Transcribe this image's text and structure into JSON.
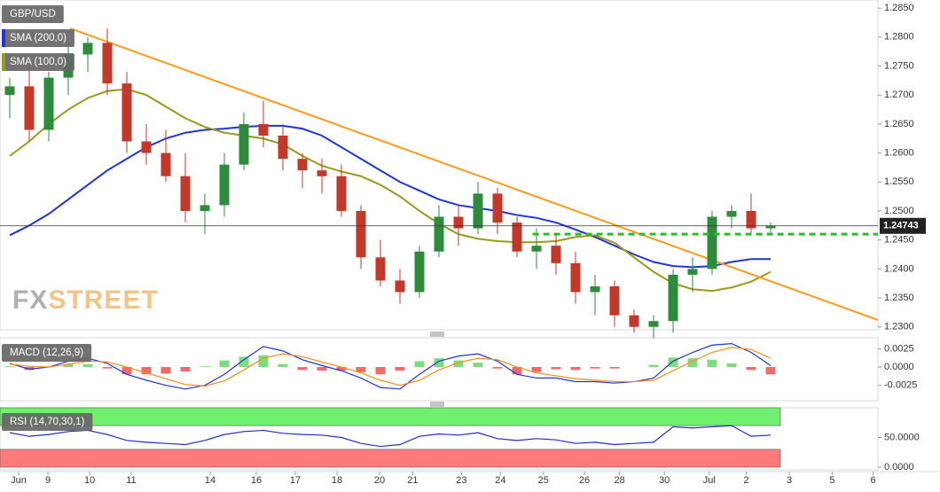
{
  "chart_data": [
    {
      "type": "candlestick",
      "name": "GBP/USD",
      "up_color": "#2e8b3d",
      "down_color": "#c0392b",
      "xlim": [
        -0.5,
        44.5
      ],
      "ylim": [
        1.2295,
        1.2864
      ],
      "yticks": [
        {
          "value": 1.285,
          "label": "1.2850"
        },
        {
          "value": 1.28,
          "label": "1.2800"
        },
        {
          "value": 1.275,
          "label": "1.2750"
        },
        {
          "value": 1.27,
          "label": "1.2700"
        },
        {
          "value": 1.265,
          "label": "1.2650"
        },
        {
          "value": 1.26,
          "label": "1.2600"
        },
        {
          "value": 1.255,
          "label": "1.2550"
        },
        {
          "value": 1.25,
          "label": "1.2500"
        },
        {
          "value": 1.245,
          "label": "1.2450"
        },
        {
          "value": 1.24,
          "label": "1.2400"
        },
        {
          "value": 1.235,
          "label": "1.2350"
        },
        {
          "value": 1.23,
          "label": "1.2300"
        }
      ],
      "ohlc": [
        [
          1.27,
          1.273,
          1.266,
          1.2715
        ],
        [
          1.2715,
          1.276,
          1.262,
          1.264
        ],
        [
          1.264,
          1.274,
          1.262,
          1.273
        ],
        [
          1.273,
          1.279,
          1.27,
          1.277
        ],
        [
          1.277,
          1.28,
          1.274,
          1.279
        ],
        [
          1.279,
          1.2815,
          1.27,
          1.272
        ],
        [
          1.272,
          1.274,
          1.26,
          1.262
        ],
        [
          1.262,
          1.265,
          1.258,
          1.26
        ],
        [
          1.26,
          1.264,
          1.255,
          1.256
        ],
        [
          1.256,
          1.26,
          1.248,
          1.25
        ],
        [
          1.25,
          1.253,
          1.246,
          1.251
        ],
        [
          1.251,
          1.26,
          1.249,
          1.258
        ],
        [
          1.258,
          1.267,
          1.257,
          1.265
        ],
        [
          1.265,
          1.269,
          1.261,
          1.263
        ],
        [
          1.263,
          1.265,
          1.257,
          1.259
        ],
        [
          1.259,
          1.26,
          1.254,
          1.257
        ],
        [
          1.257,
          1.259,
          1.253,
          1.256
        ],
        [
          1.256,
          1.258,
          1.249,
          1.25
        ],
        [
          1.25,
          1.251,
          1.24,
          1.242
        ],
        [
          1.242,
          1.245,
          1.237,
          1.238
        ],
        [
          1.238,
          1.24,
          1.234,
          1.236
        ],
        [
          1.236,
          1.244,
          1.235,
          1.243
        ],
        [
          1.243,
          1.251,
          1.242,
          1.249
        ],
        [
          1.249,
          1.251,
          1.244,
          1.247
        ],
        [
          1.247,
          1.255,
          1.246,
          1.253
        ],
        [
          1.253,
          1.254,
          1.246,
          1.248
        ],
        [
          1.248,
          1.249,
          1.242,
          1.243
        ],
        [
          1.243,
          1.247,
          1.24,
          1.244
        ],
        [
          1.244,
          1.246,
          1.239,
          1.241
        ],
        [
          1.241,
          1.243,
          1.234,
          1.236
        ],
        [
          1.236,
          1.239,
          1.232,
          1.237
        ],
        [
          1.237,
          1.238,
          1.23,
          1.232
        ],
        [
          1.232,
          1.233,
          1.229,
          1.23
        ],
        [
          1.23,
          1.232,
          1.228,
          1.231
        ],
        [
          1.231,
          1.24,
          1.229,
          1.239
        ],
        [
          1.239,
          1.242,
          1.236,
          1.24
        ],
        [
          1.24,
          1.25,
          1.239,
          1.249
        ],
        [
          1.249,
          1.251,
          1.247,
          1.25
        ],
        [
          1.25,
          1.253,
          1.246,
          1.247
        ],
        [
          1.247,
          1.248,
          1.246,
          1.24743
        ]
      ],
      "series": [
        {
          "name": "SMA (200,0)",
          "color": "#1f35d6",
          "values": [
            1.2458,
            1.2475,
            1.2495,
            1.252,
            1.2545,
            1.257,
            1.259,
            1.261,
            1.2625,
            1.2635,
            1.264,
            1.2642,
            1.2645,
            1.2647,
            1.2647,
            1.2642,
            1.263,
            1.261,
            1.259,
            1.257,
            1.255,
            1.2535,
            1.252,
            1.251,
            1.2505,
            1.25,
            1.2493,
            1.2488,
            1.248,
            1.2468,
            1.2455,
            1.244,
            1.2425,
            1.2412,
            1.2405,
            1.2403,
            1.2405,
            1.2412,
            1.2417,
            1.2417
          ]
        },
        {
          "name": "SMA (100,0)",
          "color": "#9a9a1a",
          "values": [
            1.2595,
            1.262,
            1.265,
            1.2675,
            1.2695,
            1.2707,
            1.271,
            1.27,
            1.268,
            1.266,
            1.2645,
            1.2635,
            1.263,
            1.2625,
            1.2615,
            1.2595,
            1.2578,
            1.2568,
            1.256,
            1.2545,
            1.2525,
            1.25,
            1.2478,
            1.246,
            1.2452,
            1.2448,
            1.2446,
            1.2446,
            1.2448,
            1.2455,
            1.2458,
            1.2445,
            1.242,
            1.2395,
            1.2375,
            1.2365,
            1.2362,
            1.2368,
            1.2378,
            1.2395
          ]
        }
      ],
      "trendline": {
        "color": "#ff9a1a",
        "x": [
          3.1,
          44.5
        ],
        "y": [
          1.2815,
          1.2312
        ]
      },
      "support": {
        "color": "#22c122",
        "x": [
          26.8,
          44.5
        ],
        "y": 1.246
      },
      "last_price": 1.24743,
      "watermark": [
        "FX",
        "STREET"
      ]
    },
    {
      "type": "macd",
      "title": "MACD (12,26,9)",
      "xlim": [
        -0.5,
        44.5
      ],
      "ylim": [
        -0.0046,
        0.004
      ],
      "yticks": [
        {
          "value": 0.0025,
          "label": "0.0025"
        },
        {
          "value": 0,
          "label": "0.0000"
        },
        {
          "value": -0.0025,
          "label": "-0.0025"
        }
      ],
      "series": [
        {
          "color": "#1f35d6",
          "values": [
            0.0005,
            -0.0003,
            0,
            0.0008,
            0.0012,
            0.0005,
            -0.001,
            -0.0018,
            -0.0025,
            -0.003,
            -0.0025,
            -0.001,
            0.001,
            0.0028,
            0.0022,
            0.001,
            0.0002,
            -0.0005,
            -0.0015,
            -0.0028,
            -0.003,
            -0.001,
            0.0008,
            0.0015,
            0.0018,
            0.0008,
            -0.001,
            -0.0015,
            -0.0015,
            -0.002,
            -0.002,
            -0.0022,
            -0.002,
            -0.0015,
            0.0008,
            0.002,
            0.003,
            0.0032,
            0.002,
            0.0002
          ]
        },
        {
          "color": "#ff8c1a",
          "values": [
            0.0004,
            0.0001,
            0,
            0.0004,
            0.0008,
            0.0007,
            0,
            -0.0008,
            -0.0016,
            -0.0024,
            -0.0026,
            -0.0019,
            -0.0004,
            0.0012,
            0.0018,
            0.0014,
            0.0007,
            0,
            -0.0008,
            -0.0018,
            -0.0025,
            -0.0018,
            -0.0004,
            0.0006,
            0.0012,
            0.001,
            0,
            -0.0008,
            -0.0012,
            -0.0016,
            -0.0018,
            -0.002,
            -0.002,
            -0.0018,
            -0.0005,
            0.0008,
            0.002,
            0.0027,
            0.0024,
            0.0012
          ]
        }
      ],
      "histogram": {
        "up_color": "#7ddc7d",
        "down_color": "#ef6b6b",
        "values": [
          0.0001,
          -0.0004,
          0,
          0.0004,
          0.0004,
          -0.0002,
          -0.001,
          -0.001,
          -0.0009,
          -0.0006,
          0.0001,
          0.0009,
          0.0014,
          0.0016,
          0.0004,
          -0.0004,
          -0.0005,
          -0.0005,
          -0.0007,
          -0.001,
          -0.0005,
          0.0008,
          0.0012,
          0.0009,
          0.0006,
          -0.0002,
          -0.001,
          -0.0007,
          -0.0003,
          -0.0004,
          -0.0002,
          -0.0002,
          0,
          0.0003,
          0.0013,
          0.0012,
          0.001,
          0.0005,
          -0.0004,
          -0.001
        ]
      }
    },
    {
      "type": "line",
      "title": "RSI (14,70,30,1)",
      "xlim": [
        -0.5,
        44.5
      ],
      "ylim": [
        -4.5,
        100
      ],
      "yticks": [
        {
          "value": 50,
          "label": "50.0000"
        },
        {
          "value": 0,
          "label": "0.0000"
        }
      ],
      "bands": [
        {
          "from": 70,
          "to": 100,
          "color": "#6ff06f"
        },
        {
          "from": 0,
          "to": 30,
          "color": "#ff7b7b"
        }
      ],
      "color": "#1f2fcc",
      "values": [
        58,
        52,
        55,
        60,
        62,
        55,
        45,
        42,
        40,
        38,
        45,
        55,
        60,
        62,
        57,
        55,
        54,
        50,
        40,
        35,
        38,
        52,
        56,
        54,
        58,
        48,
        45,
        48,
        46,
        40,
        42,
        38,
        40,
        42,
        68,
        66,
        68,
        70,
        52,
        54
      ],
      "xticks": [
        {
          "value": 0,
          "label": "Jun"
        },
        {
          "value": 1.5,
          "label": "9"
        },
        {
          "value": 3.64,
          "label": "10"
        },
        {
          "value": 5.77,
          "label": "11"
        },
        {
          "value": 9.82,
          "label": "14"
        },
        {
          "value": 12.18,
          "label": "16"
        },
        {
          "value": 14.18,
          "label": "17"
        },
        {
          "value": 16.32,
          "label": "18"
        },
        {
          "value": 18.5,
          "label": "20"
        },
        {
          "value": 20.2,
          "label": "21"
        },
        {
          "value": 22.7,
          "label": "23"
        },
        {
          "value": 24.7,
          "label": "24"
        },
        {
          "value": 26.9,
          "label": "25"
        },
        {
          "value": 29,
          "label": "26"
        },
        {
          "value": 30.8,
          "label": "28"
        },
        {
          "value": 33.1,
          "label": "30"
        },
        {
          "value": 35.4,
          "label": "Jul"
        },
        {
          "value": 37.3,
          "label": "2"
        },
        {
          "value": 39.5,
          "label": "3"
        },
        {
          "value": 41.7,
          "label": "5"
        },
        {
          "value": 43.8,
          "label": "6"
        }
      ]
    }
  ]
}
